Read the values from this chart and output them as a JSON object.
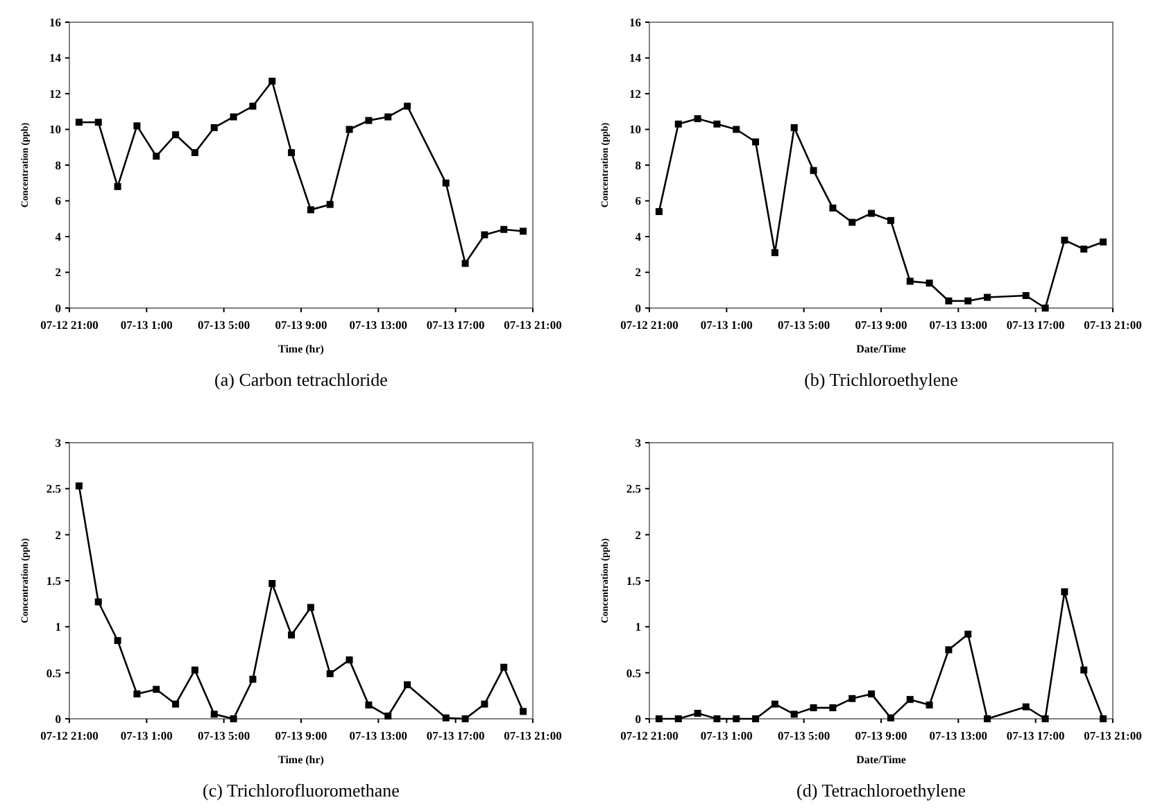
{
  "chart_data": [
    {
      "type": "line",
      "title": "(a) Carbon tetrachloride",
      "xlabel": "Time (hr)",
      "ylabel": "Concentration (ppb)",
      "color": "#000000",
      "marker": "square",
      "line_style": "solid",
      "x": [
        "--07-12T21:30",
        "--07-12T22:30",
        "--07-12T23:30",
        "--07-13T00:30",
        "--07-13T01:30",
        "--07-13T02:30",
        "--07-13T03:30",
        "--07-13T04:30",
        "--07-13T05:30",
        "--07-13T06:30",
        "--07-13T07:30",
        "--07-13T08:30",
        "--07-13T09:30",
        "--07-13T10:30",
        "--07-13T11:30",
        "--07-13T12:30",
        "--07-13T13:30",
        "--07-13T14:30",
        "--07-13T16:30",
        "--07-13T17:30",
        "--07-13T18:30",
        "--07-13T19:30",
        "--07-13T20:30"
      ],
      "values": [
        10.4,
        10.4,
        6.8,
        10.2,
        8.5,
        9.7,
        8.7,
        10.1,
        10.7,
        11.3,
        12.7,
        8.7,
        5.5,
        5.8,
        10.0,
        10.5,
        10.7,
        11.3,
        7.0,
        2.5,
        4.1,
        4.4,
        4.3
      ],
      "xlim": [
        "--07-12T21:00",
        "--07-13T21:00"
      ],
      "xticks": [
        {
          "value": "--07-12T21:00",
          "label": "07-12 21:00"
        },
        {
          "value": "--07-13T01:00",
          "label": "07-13 1:00"
        },
        {
          "value": "--07-13T05:00",
          "label": "07-13 5:00"
        },
        {
          "value": "--07-13T09:00",
          "label": "07-13 9:00"
        },
        {
          "value": "--07-13T13:00",
          "label": "07-13 13:00"
        },
        {
          "value": "--07-13T17:00",
          "label": "07-13 17:00"
        },
        {
          "value": "--07-13T21:00",
          "label": "07-13 21:00"
        }
      ],
      "ylim": [
        0,
        16
      ],
      "yticks": [
        0,
        2,
        4,
        6,
        8,
        10,
        12,
        14,
        16
      ]
    },
    {
      "type": "line",
      "title": "(b) Trichloroethylene",
      "xlabel": "Date/Time",
      "ylabel": "Concentration (ppb)",
      "color": "#000000",
      "marker": "square",
      "line_style": "solid",
      "x": [
        "--07-12T21:30",
        "--07-12T22:30",
        "--07-12T23:30",
        "--07-13T00:30",
        "--07-13T01:30",
        "--07-13T02:30",
        "--07-13T03:30",
        "--07-13T04:30",
        "--07-13T05:30",
        "--07-13T06:30",
        "--07-13T07:30",
        "--07-13T08:30",
        "--07-13T09:30",
        "--07-13T10:30",
        "--07-13T11:30",
        "--07-13T12:30",
        "--07-13T13:30",
        "--07-13T14:30",
        "--07-13T16:30",
        "--07-13T17:30",
        "--07-13T18:30",
        "--07-13T19:30",
        "--07-13T20:30"
      ],
      "values": [
        5.4,
        10.3,
        10.6,
        10.3,
        10.0,
        9.3,
        3.1,
        10.1,
        7.7,
        5.6,
        4.8,
        5.3,
        4.9,
        1.5,
        1.4,
        0.4,
        0.4,
        0.6,
        0.7,
        0.0,
        3.8,
        3.3,
        3.7
      ],
      "xlim": [
        "--07-12T21:00",
        "--07-13T21:00"
      ],
      "xticks": [
        {
          "value": "--07-12T21:00",
          "label": "07-12 21:00"
        },
        {
          "value": "--07-13T01:00",
          "label": "07-13 1:00"
        },
        {
          "value": "--07-13T05:00",
          "label": "07-13 5:00"
        },
        {
          "value": "--07-13T09:00",
          "label": "07-13 9:00"
        },
        {
          "value": "--07-13T13:00",
          "label": "07-13 13:00"
        },
        {
          "value": "--07-13T17:00",
          "label": "07-13 17:00"
        },
        {
          "value": "--07-13T21:00",
          "label": "07-13 21:00"
        }
      ],
      "ylim": [
        0,
        16
      ],
      "yticks": [
        0,
        2,
        4,
        6,
        8,
        10,
        12,
        14,
        16
      ]
    },
    {
      "type": "line",
      "title": "(c) Trichlorofluoromethane",
      "xlabel": "Time (hr)",
      "ylabel": "Concentration (ppb)",
      "color": "#000000",
      "marker": "square",
      "line_style": "solid",
      "x": [
        "--07-12T21:30",
        "--07-12T22:30",
        "--07-12T23:30",
        "--07-13T00:30",
        "--07-13T01:30",
        "--07-13T02:30",
        "--07-13T03:30",
        "--07-13T04:30",
        "--07-13T05:30",
        "--07-13T06:30",
        "--07-13T07:30",
        "--07-13T08:30",
        "--07-13T09:30",
        "--07-13T10:30",
        "--07-13T11:30",
        "--07-13T12:30",
        "--07-13T13:30",
        "--07-13T14:30",
        "--07-13T16:30",
        "--07-13T17:30",
        "--07-13T18:30",
        "--07-13T19:30",
        "--07-13T20:30"
      ],
      "values": [
        2.53,
        1.27,
        0.85,
        0.27,
        0.32,
        0.16,
        0.53,
        0.05,
        0.0,
        0.43,
        1.47,
        0.91,
        1.21,
        0.49,
        0.64,
        0.15,
        0.03,
        0.37,
        0.01,
        0.0,
        0.16,
        0.56,
        0.08
      ],
      "xlim": [
        "--07-12T21:00",
        "--07-13T21:00"
      ],
      "xticks": [
        {
          "value": "--07-12T21:00",
          "label": "07-12 21:00"
        },
        {
          "value": "--07-13T01:00",
          "label": "07-13 1:00"
        },
        {
          "value": "--07-13T05:00",
          "label": "07-13 5:00"
        },
        {
          "value": "--07-13T09:00",
          "label": "07-13 9:00"
        },
        {
          "value": "--07-13T13:00",
          "label": "07-13 13:00"
        },
        {
          "value": "--07-13T17:00",
          "label": "07-13 17:00"
        },
        {
          "value": "--07-13T21:00",
          "label": "07-13 21:00"
        }
      ],
      "ylim": [
        0,
        3
      ],
      "yticks": [
        0,
        0.5,
        1,
        1.5,
        2,
        2.5,
        3
      ]
    },
    {
      "type": "line",
      "title": "(d) Tetrachloroethylene",
      "xlabel": "Date/Time",
      "ylabel": "Concentration (ppb)",
      "color": "#000000",
      "marker": "square",
      "line_style": "solid",
      "x": [
        "--07-12T21:30",
        "--07-12T22:30",
        "--07-12T23:30",
        "--07-13T00:30",
        "--07-13T01:30",
        "--07-13T02:30",
        "--07-13T03:30",
        "--07-13T04:30",
        "--07-13T05:30",
        "--07-13T06:30",
        "--07-13T07:30",
        "--07-13T08:30",
        "--07-13T09:30",
        "--07-13T10:30",
        "--07-13T11:30",
        "--07-13T12:30",
        "--07-13T13:30",
        "--07-13T14:30",
        "--07-13T16:30",
        "--07-13T17:30",
        "--07-13T18:30",
        "--07-13T19:30",
        "--07-13T20:30"
      ],
      "values": [
        0.0,
        0.0,
        0.06,
        0.0,
        0.0,
        0.0,
        0.16,
        0.05,
        0.12,
        0.12,
        0.22,
        0.27,
        0.01,
        0.21,
        0.15,
        0.75,
        0.92,
        0.0,
        0.13,
        0.0,
        1.38,
        0.53,
        0.0
      ],
      "xlim": [
        "--07-12T21:00",
        "--07-13T21:00"
      ],
      "xticks": [
        {
          "value": "--07-12T21:00",
          "label": "07-12 21:00"
        },
        {
          "value": "--07-13T01:00",
          "label": "07-13 1:00"
        },
        {
          "value": "--07-13T05:00",
          "label": "07-13 5:00"
        },
        {
          "value": "--07-13T09:00",
          "label": "07-13 9:00"
        },
        {
          "value": "--07-13T13:00",
          "label": "07-13 13:00"
        },
        {
          "value": "--07-13T17:00",
          "label": "07-13 17:00"
        },
        {
          "value": "--07-13T21:00",
          "label": "07-13 21:00"
        }
      ],
      "ylim": [
        0,
        3
      ],
      "yticks": [
        0,
        0.5,
        1,
        1.5,
        2,
        2.5,
        3
      ]
    }
  ]
}
